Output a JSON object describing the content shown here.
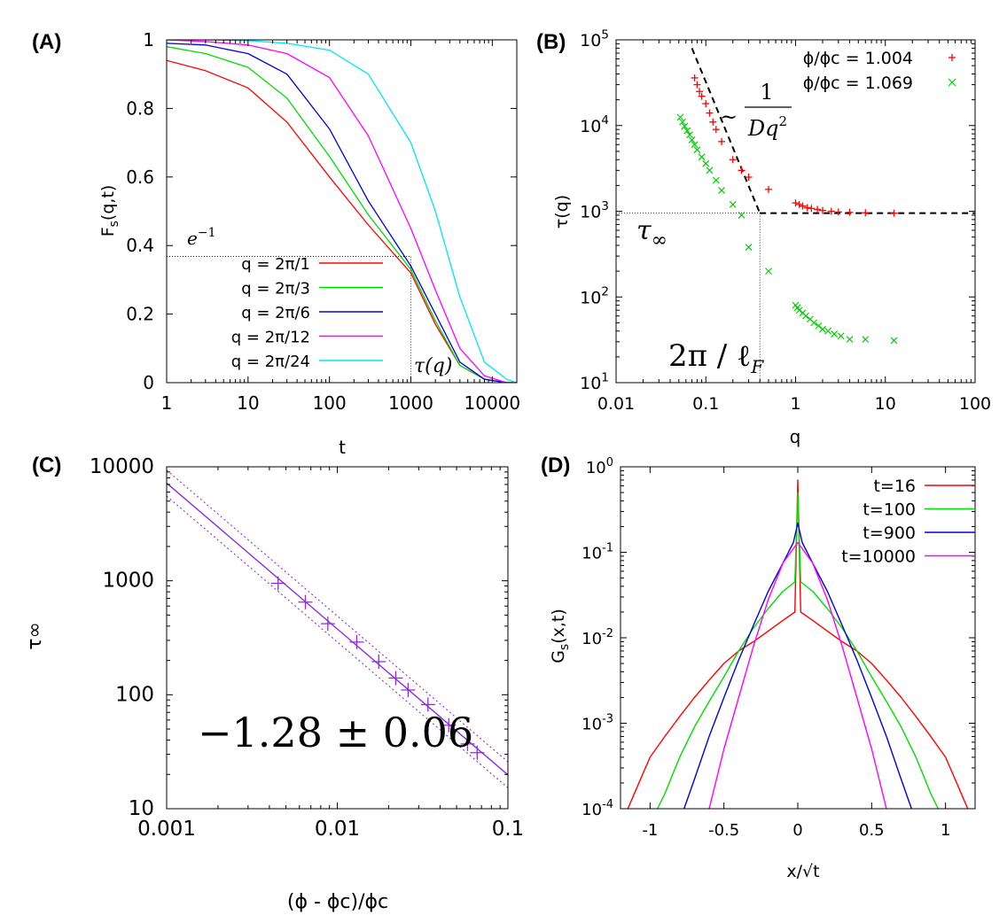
{
  "panels": {
    "A": {
      "label": "(A)"
    },
    "B": {
      "label": "(B)"
    },
    "C": {
      "label": "(C)"
    },
    "D": {
      "label": "(D)"
    }
  },
  "chart_data": [
    {
      "id": "A",
      "type": "line",
      "xscale": "log",
      "xlim": [
        1,
        20000
      ],
      "ylim": [
        0,
        1
      ],
      "xlabel": "t",
      "ylabel": "F_s(q,t)",
      "xticks": [
        {
          "v": 1,
          "label": "1"
        },
        {
          "v": 10,
          "label": "10"
        },
        {
          "v": 100,
          "label": "100"
        },
        {
          "v": 1000,
          "label": "1000"
        },
        {
          "v": 10000,
          "label": "10000"
        }
      ],
      "yticks": [
        {
          "v": 0,
          "label": "0"
        },
        {
          "v": 0.2,
          "label": "0.2"
        },
        {
          "v": 0.4,
          "label": "0.4"
        },
        {
          "v": 0.6,
          "label": "0.6"
        },
        {
          "v": 0.8,
          "label": "0.8"
        },
        {
          "v": 1,
          "label": "1"
        }
      ],
      "reference": {
        "y": 0.368,
        "x": 1000,
        "y_label": "e^-1",
        "x_label": "τ(q)"
      },
      "legend_position": "bottom-left",
      "series": [
        {
          "name": "q = 2π/1",
          "color": "#ff0000",
          "x": [
            1,
            3,
            10,
            30,
            100,
            300,
            1000,
            2000,
            4000,
            8000,
            15000,
            20000
          ],
          "y": [
            0.94,
            0.91,
            0.86,
            0.76,
            0.6,
            0.46,
            0.32,
            0.17,
            0.05,
            0.01,
            0.0,
            0.0
          ]
        },
        {
          "name": "q = 2π/3",
          "color": "#00dd00",
          "x": [
            1,
            3,
            10,
            30,
            100,
            300,
            1000,
            2000,
            4000,
            8000,
            15000,
            20000
          ],
          "y": [
            0.98,
            0.96,
            0.92,
            0.83,
            0.66,
            0.49,
            0.33,
            0.18,
            0.05,
            0.01,
            0.0,
            0.0
          ]
        },
        {
          "name": "q = 2π/6",
          "color": "#0000dd",
          "x": [
            1,
            3,
            10,
            30,
            100,
            300,
            1000,
            2000,
            4000,
            8000,
            15000,
            20000
          ],
          "y": [
            0.99,
            0.985,
            0.96,
            0.9,
            0.74,
            0.53,
            0.34,
            0.2,
            0.06,
            0.01,
            0.0,
            0.0
          ]
        },
        {
          "name": "q = 2π/12",
          "color": "#ff00ff",
          "x": [
            1,
            3,
            10,
            30,
            100,
            300,
            1000,
            2000,
            4000,
            8000,
            15000,
            20000
          ],
          "y": [
            1.0,
            0.995,
            0.985,
            0.96,
            0.89,
            0.72,
            0.45,
            0.27,
            0.1,
            0.02,
            0.0,
            0.0
          ]
        },
        {
          "name": "q = 2π/24",
          "color": "#00e5ee",
          "x": [
            1,
            3,
            10,
            30,
            100,
            300,
            1000,
            2000,
            4000,
            8000,
            15000,
            20000
          ],
          "y": [
            1.0,
            1.0,
            0.998,
            0.99,
            0.97,
            0.9,
            0.7,
            0.5,
            0.25,
            0.06,
            0.01,
            0.0
          ]
        }
      ]
    },
    {
      "id": "B",
      "type": "scatter",
      "xscale": "log",
      "yscale": "log",
      "xlim": [
        0.01,
        100
      ],
      "ylim": [
        10,
        100000
      ],
      "xlabel": "q",
      "ylabel": "τ(q)",
      "xticks": [
        {
          "v": 0.01,
          "label": "0.01"
        },
        {
          "v": 0.1,
          "label": "0.1"
        },
        {
          "v": 1,
          "label": "1"
        },
        {
          "v": 10,
          "label": "10"
        },
        {
          "v": 100,
          "label": "100"
        }
      ],
      "yticks": [
        {
          "v": 10,
          "base": "10",
          "exp": "1"
        },
        {
          "v": 100,
          "base": "10",
          "exp": "2"
        },
        {
          "v": 1000,
          "base": "10",
          "exp": "3"
        },
        {
          "v": 10000,
          "base": "10",
          "exp": "4"
        },
        {
          "v": 100000,
          "base": "10",
          "exp": "5"
        }
      ],
      "annotations": {
        "diffusive": "~ 1 / Dq²",
        "plateau": "τ∞",
        "crossover": "2π / ℓF"
      },
      "fit_lines": {
        "diffusive_x": [
          0.07,
          0.4
        ],
        "diffusive_y": [
          80000,
          950
        ],
        "plateau_y": 950,
        "plateau_x": [
          0.4,
          100
        ]
      },
      "reference": {
        "x": 0.4,
        "y": 950
      },
      "legend_position": "top-right",
      "series": [
        {
          "name": "ϕ/ϕc = 1.004",
          "color": "#ff0000",
          "marker": "+",
          "x": [
            0.075,
            0.08,
            0.085,
            0.09,
            0.1,
            0.11,
            0.12,
            0.13,
            0.15,
            0.2,
            0.25,
            0.3,
            0.5,
            1.0,
            1.1,
            1.2,
            1.35,
            1.5,
            1.75,
            2.0,
            2.5,
            3.0,
            4.0,
            6.0,
            12.5
          ],
          "y": [
            36000,
            30000,
            25000,
            22000,
            18000,
            14000,
            11000,
            9000,
            6500,
            4000,
            3000,
            2500,
            1800,
            1250,
            1200,
            1150,
            1100,
            1080,
            1050,
            1020,
            1000,
            980,
            970,
            960,
            950
          ]
        },
        {
          "name": "ϕ/ϕc = 1.069",
          "color": "#00cc00",
          "marker": "x",
          "x": [
            0.052,
            0.055,
            0.058,
            0.062,
            0.066,
            0.07,
            0.075,
            0.08,
            0.09,
            0.1,
            0.11,
            0.13,
            0.15,
            0.2,
            0.25,
            0.3,
            0.5,
            1.0,
            1.05,
            1.1,
            1.2,
            1.3,
            1.45,
            1.6,
            1.8,
            2.0,
            2.3,
            2.7,
            3.2,
            4.0,
            6.0,
            12.5
          ],
          "y": [
            12500,
            11000,
            9800,
            8700,
            7800,
            6800,
            6000,
            5200,
            4300,
            3600,
            3000,
            2300,
            1750,
            1200,
            900,
            380,
            200,
            80,
            75,
            70,
            65,
            60,
            55,
            50,
            46,
            42,
            40,
            37,
            35,
            32,
            32,
            31
          ]
        }
      ]
    },
    {
      "id": "C",
      "type": "scatter",
      "xscale": "log",
      "yscale": "log",
      "xlim": [
        0.001,
        0.1
      ],
      "ylim": [
        10,
        10000
      ],
      "xlabel": "(ϕ - ϕc)/ϕc",
      "ylabel": "τ∞",
      "xticks": [
        {
          "v": 0.001,
          "label": "0.001"
        },
        {
          "v": 0.01,
          "label": "0.01"
        },
        {
          "v": 0.1,
          "label": "0.1"
        }
      ],
      "yticks": [
        {
          "v": 10,
          "label": "10"
        },
        {
          "v": 100,
          "label": "100"
        },
        {
          "v": 1000,
          "label": "1000"
        },
        {
          "v": 10000,
          "label": "10000"
        }
      ],
      "fit": {
        "slope": -1.28,
        "error": 0.06,
        "amplitude": 1.04,
        "error_band_factor": 1.3
      },
      "annotation": "−1.28 ± 0.06",
      "series": [
        {
          "name": "τ∞",
          "color": "#8a2be2",
          "marker": "+",
          "x": [
            0.0045,
            0.0065,
            0.0088,
            0.013,
            0.0175,
            0.022,
            0.026,
            0.034,
            0.045,
            0.058,
            0.066
          ],
          "y": [
            950,
            650,
            420,
            290,
            195,
            140,
            110,
            82,
            54,
            37,
            31
          ]
        }
      ]
    },
    {
      "id": "D",
      "type": "line",
      "yscale": "log",
      "xlim": [
        -1.2,
        1.2
      ],
      "ylim": [
        0.0001,
        1
      ],
      "xlabel": "x/√t",
      "ylabel": "G_s(x,t)",
      "xticks": [
        {
          "v": -1,
          "label": "-1"
        },
        {
          "v": -0.5,
          "label": "-0.5"
        },
        {
          "v": 0,
          "label": "0"
        },
        {
          "v": 0.5,
          "label": "0.5"
        },
        {
          "v": 1,
          "label": "1"
        }
      ],
      "yticks": [
        {
          "v": 0.0001,
          "base": "10",
          "exp": "-4"
        },
        {
          "v": 0.001,
          "base": "10",
          "exp": "-3"
        },
        {
          "v": 0.01,
          "base": "10",
          "exp": "-2"
        },
        {
          "v": 0.1,
          "base": "10",
          "exp": "-1"
        },
        {
          "v": 1,
          "base": "10",
          "exp": "0"
        }
      ],
      "legend_position": "top-right",
      "series": [
        {
          "name": "t=16",
          "color": "#ff0000",
          "x": [
            -1.15,
            -1.1,
            -1.0,
            -0.9,
            -0.8,
            -0.7,
            -0.6,
            -0.5,
            -0.4,
            -0.3,
            -0.2,
            -0.1,
            -0.02,
            0.0,
            0.02,
            0.1,
            0.2,
            0.3,
            0.4,
            0.5,
            0.6,
            0.7,
            0.8,
            0.9,
            1.0,
            1.1,
            1.15
          ],
          "y": [
            0.0001,
            0.00016,
            0.0004,
            0.0007,
            0.0012,
            0.002,
            0.0032,
            0.005,
            0.007,
            0.009,
            0.012,
            0.016,
            0.02,
            0.7,
            0.02,
            0.016,
            0.012,
            0.009,
            0.007,
            0.005,
            0.0032,
            0.002,
            0.0012,
            0.0007,
            0.0004,
            0.00016,
            0.0001
          ]
        },
        {
          "name": "t=100",
          "color": "#00dd00",
          "x": [
            -0.95,
            -0.9,
            -0.8,
            -0.7,
            -0.6,
            -0.5,
            -0.4,
            -0.3,
            -0.2,
            -0.1,
            -0.02,
            0.0,
            0.02,
            0.1,
            0.2,
            0.3,
            0.4,
            0.5,
            0.6,
            0.7,
            0.8,
            0.9,
            0.95
          ],
          "y": [
            0.0001,
            0.00015,
            0.0004,
            0.0009,
            0.0018,
            0.0035,
            0.007,
            0.013,
            0.022,
            0.035,
            0.045,
            0.5,
            0.045,
            0.035,
            0.022,
            0.013,
            0.007,
            0.0035,
            0.0018,
            0.0009,
            0.0004,
            0.00015,
            0.0001
          ]
        },
        {
          "name": "t=900",
          "color": "#0000dd",
          "x": [
            -0.77,
            -0.7,
            -0.6,
            -0.5,
            -0.4,
            -0.3,
            -0.2,
            -0.1,
            -0.03,
            0.0,
            0.03,
            0.1,
            0.2,
            0.3,
            0.4,
            0.5,
            0.6,
            0.7,
            0.77
          ],
          "y": [
            0.0001,
            0.00022,
            0.0007,
            0.002,
            0.0055,
            0.014,
            0.035,
            0.075,
            0.13,
            0.22,
            0.13,
            0.075,
            0.035,
            0.014,
            0.0055,
            0.002,
            0.0007,
            0.00022,
            0.0001
          ]
        },
        {
          "name": "t=10000",
          "color": "#ff00ff",
          "x": [
            -0.6,
            -0.5,
            -0.4,
            -0.3,
            -0.2,
            -0.1,
            0.0,
            0.1,
            0.2,
            0.3,
            0.4,
            0.5,
            0.6
          ],
          "y": [
            0.0001,
            0.0005,
            0.002,
            0.008,
            0.028,
            0.075,
            0.13,
            0.075,
            0.028,
            0.008,
            0.002,
            0.0005,
            0.0001
          ]
        }
      ]
    }
  ]
}
